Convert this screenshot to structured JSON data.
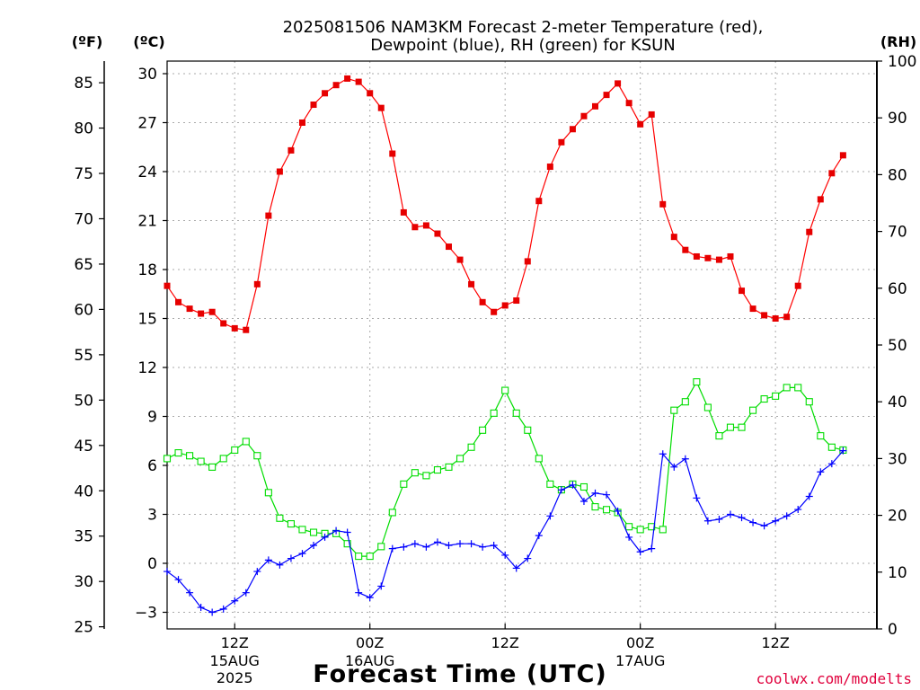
{
  "chart_data": {
    "type": "line",
    "title_line1": "2025081506 NAM3KM Forecast 2-meter Temperature (red),",
    "title_line2": "Dewpoint (blue), RH (green) for KSUN",
    "xlabel": "Forecast Time (UTC)",
    "credit": "coolwx.com/modelts",
    "unit_f": "(ºF)",
    "unit_c": "(ºC)",
    "unit_rh": "(RH)",
    "x_range_hours": [
      0,
      63
    ],
    "ylim_c": [
      -4.5,
      31
    ],
    "ylim_rh": [
      0,
      100
    ],
    "yticks_f": [
      "85",
      "80",
      "75",
      "70",
      "65",
      "60",
      "55",
      "50",
      "45",
      "40",
      "35",
      "30",
      "25"
    ],
    "yticks_c": [
      "30",
      "27",
      "24",
      "21",
      "18",
      "15",
      "12",
      "9",
      "6",
      "3",
      "0",
      "−3"
    ],
    "yticks_rh": [
      "100",
      "90",
      "80",
      "70",
      "60",
      "50",
      "40",
      "30",
      "20",
      "10",
      "0"
    ],
    "xticks": [
      {
        "hour": 6,
        "label": "12Z",
        "sub1": "15AUG",
        "sub2": "2025"
      },
      {
        "hour": 18,
        "label": "00Z",
        "sub1": "16AUG",
        "sub2": ""
      },
      {
        "hour": 30,
        "label": "12Z",
        "sub1": "",
        "sub2": ""
      },
      {
        "hour": 42,
        "label": "00Z",
        "sub1": "17AUG",
        "sub2": ""
      },
      {
        "hour": 54,
        "label": "12Z",
        "sub1": "",
        "sub2": ""
      }
    ],
    "colors": {
      "temperature": "#ff0000",
      "dewpoint": "#0000ff",
      "rh": "#00dd00",
      "temp_marker": "#e60000"
    },
    "series": [
      {
        "key": "temperature",
        "unit": "°C",
        "values": [
          17.0,
          16.0,
          15.6,
          15.3,
          15.4,
          14.7,
          14.4,
          14.3,
          17.1,
          21.3,
          24.0,
          25.3,
          27.0,
          28.1,
          28.8,
          29.3,
          29.7,
          29.5,
          28.8,
          27.9,
          25.1,
          21.5,
          20.6,
          20.7,
          20.2,
          19.4,
          18.6,
          17.1,
          16.0,
          15.4,
          15.8,
          16.1,
          18.5,
          22.2,
          24.3,
          25.8,
          26.6,
          27.4,
          28.0,
          28.7,
          29.4,
          28.2,
          26.9,
          27.5,
          22.0,
          20.0,
          19.2,
          18.8,
          18.7,
          18.6,
          18.8,
          16.7,
          15.6,
          15.2,
          15.0,
          15.1,
          17.0,
          20.3,
          22.3,
          23.9,
          25.0
        ]
      },
      {
        "key": "dewpoint",
        "unit": "°C",
        "values": [
          -0.5,
          -1.0,
          -1.8,
          -2.7,
          -3.0,
          -2.8,
          -2.3,
          -1.8,
          -0.5,
          0.2,
          -0.1,
          0.3,
          0.6,
          1.1,
          1.6,
          2.0,
          1.9,
          -1.8,
          -2.1,
          -1.4,
          0.9,
          1.0,
          1.2,
          1.0,
          1.3,
          1.1,
          1.2,
          1.2,
          1.0,
          1.1,
          0.5,
          -0.3,
          0.3,
          1.7,
          2.9,
          4.5,
          4.8,
          3.8,
          4.3,
          4.2,
          3.2,
          1.6,
          0.7,
          0.9,
          6.7,
          5.9,
          6.4,
          4.0,
          2.6,
          2.7,
          3.0,
          2.8,
          2.5,
          2.3,
          2.6,
          2.9,
          3.3,
          4.1,
          5.6,
          6.1,
          6.9
        ]
      },
      {
        "key": "rh",
        "unit": "%",
        "values": [
          30,
          31,
          30.5,
          29.5,
          28.5,
          30,
          31.5,
          33,
          30.5,
          24,
          19.5,
          18.5,
          17.5,
          17,
          16.8,
          16.8,
          15,
          12.8,
          12.8,
          14.5,
          20.5,
          25.5,
          27.5,
          27,
          28,
          28.5,
          30,
          32,
          35,
          38,
          42,
          38,
          35,
          30,
          25.5,
          24.5,
          25.5,
          25,
          21.5,
          21,
          20.5,
          18,
          17.5,
          18,
          17.5,
          38.5,
          40,
          43.5,
          39,
          34,
          35.5,
          35.5,
          38.5,
          40.5,
          41,
          42.5,
          42.5,
          40,
          34,
          32,
          31.5
        ]
      }
    ]
  }
}
